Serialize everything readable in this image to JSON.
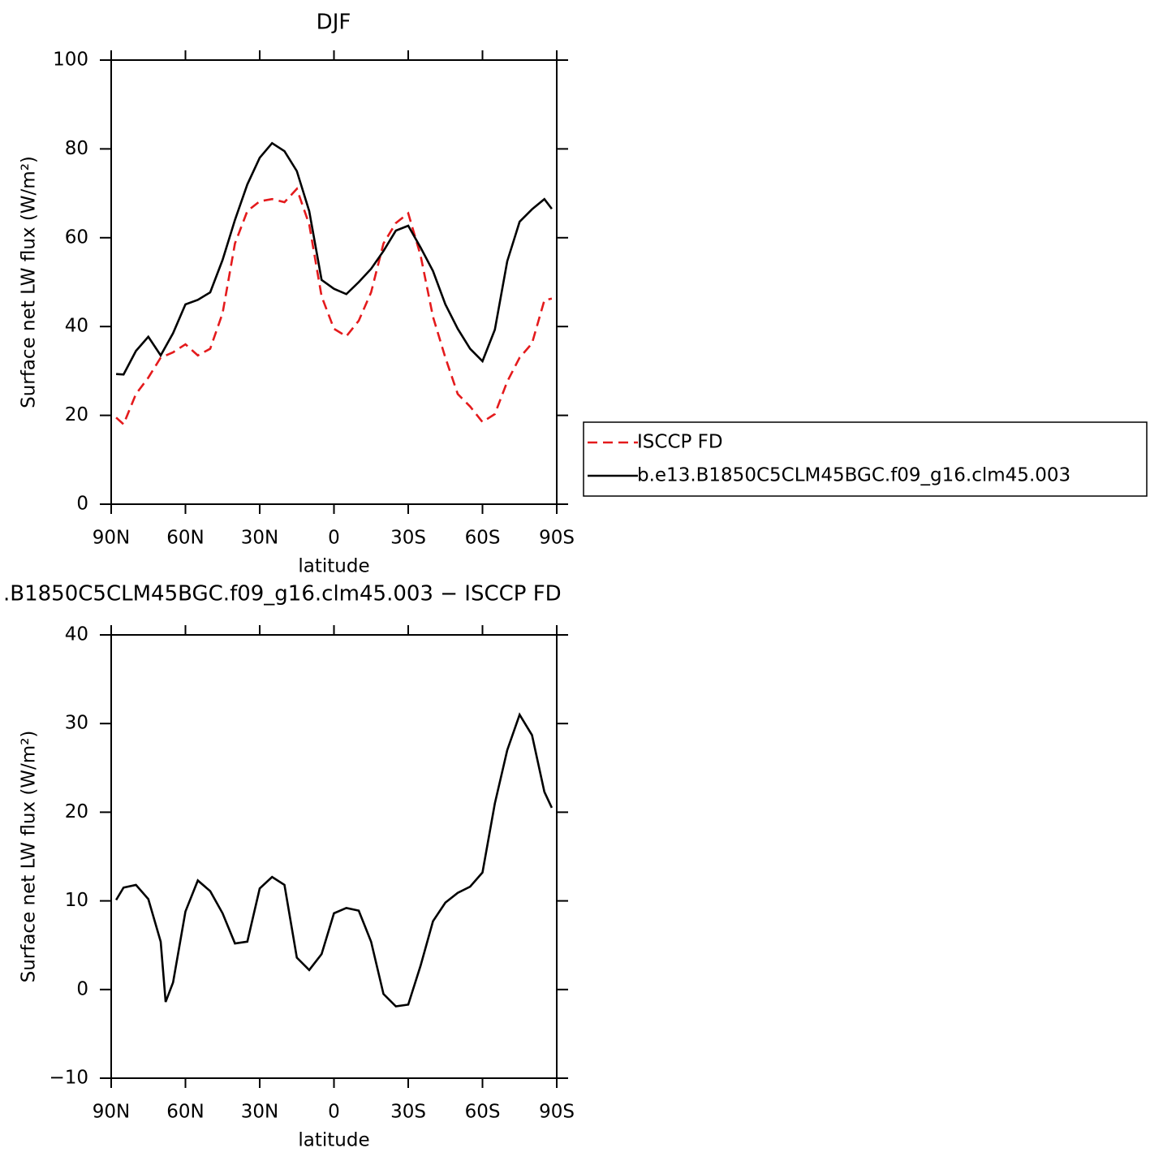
{
  "chart_data": [
    {
      "type": "line",
      "title": "DJF",
      "xlabel": "latitude",
      "ylabel": "Surface net LW flux (W/m²)",
      "x": [
        88,
        85,
        80,
        75,
        70,
        65,
        60,
        55,
        50,
        45,
        40,
        35,
        30,
        25,
        20,
        15,
        10,
        5,
        0,
        -5,
        -10,
        -15,
        -20,
        -25,
        -30,
        -35,
        -40,
        -45,
        -50,
        -55,
        -60,
        -65,
        -70,
        -75,
        -80,
        -85,
        -88
      ],
      "series": [
        {
          "name": "ISCCP FD",
          "color": "#e41a1c",
          "line_style": "dashed",
          "values": [
            19.5,
            18,
            24.8,
            28.5,
            33,
            34.2,
            36,
            33.5,
            35,
            43,
            58.7,
            66,
            68.2,
            68.7,
            68,
            71,
            63,
            46.8,
            39.5,
            37.8,
            41.3,
            47.7,
            58.7,
            63.3,
            65.5,
            56,
            42.2,
            33,
            24.8,
            22,
            18.5,
            20.3,
            27.6,
            33,
            36.2,
            45.9,
            46.3
          ]
        },
        {
          "name": "b.e13.B1850C5CLM45BGC.f09_g16.clm45.003",
          "color": "#000000",
          "line_style": "solid",
          "values": [
            29.3,
            29.2,
            34.5,
            37.7,
            33.5,
            38.5,
            45,
            46,
            47.7,
            55,
            64,
            72,
            78,
            81.3,
            79.5,
            75,
            66,
            50.5,
            48.5,
            47.3,
            50,
            53,
            57,
            61.6,
            62.7,
            57.8,
            52.5,
            45,
            39.5,
            35,
            32.2,
            39.3,
            54.7,
            63.6,
            66.4,
            68.7,
            66.5
          ]
        }
      ],
      "xlim": [
        90,
        -90
      ],
      "xticks": [
        {
          "value": 90,
          "label": "90N"
        },
        {
          "value": 60,
          "label": "60N"
        },
        {
          "value": 30,
          "label": "30N"
        },
        0,
        {
          "value": -30,
          "label": "30S"
        },
        {
          "value": -60,
          "label": "60S"
        },
        {
          "value": -90,
          "label": "90S"
        }
      ],
      "ylim": [
        0,
        100
      ],
      "yticks": [
        0,
        20,
        40,
        60,
        80,
        100
      ],
      "legend": "right"
    },
    {
      "type": "line",
      "title": ".B1850C5CLM45BGC.f09_g16.clm45.003 − ISCCP FD",
      "xlabel": "latitude",
      "ylabel": "Surface net LW flux (W/m²)",
      "x": [
        88,
        85,
        80,
        75,
        70,
        68,
        65,
        60,
        55,
        50,
        45,
        40,
        35,
        30,
        25,
        20,
        15,
        10,
        5,
        0,
        -5,
        -10,
        -15,
        -20,
        -25,
        -30,
        -35,
        -40,
        -45,
        -50,
        -55,
        -60,
        -65,
        -70,
        -75,
        -80,
        -85,
        -88
      ],
      "values": [
        10.1,
        11.5,
        11.8,
        10.2,
        5.4,
        -1.4,
        0.8,
        8.8,
        12.3,
        11.1,
        8.6,
        5.2,
        5.4,
        11.4,
        12.7,
        11.8,
        3.6,
        2.2,
        4,
        8.6,
        9.2,
        8.9,
        5.4,
        -0.5,
        -1.9,
        -1.7,
        2.7,
        7.7,
        9.8,
        10.9,
        11.6,
        13.2,
        21,
        27,
        31,
        28.7,
        22.3,
        20.5
      ],
      "color": "#000000",
      "xlim": [
        90,
        -90
      ],
      "xticks": [
        {
          "value": 90,
          "label": "90N"
        },
        {
          "value": 60,
          "label": "60N"
        },
        {
          "value": 30,
          "label": "30N"
        },
        0,
        {
          "value": -30,
          "label": "30S"
        },
        {
          "value": -60,
          "label": "60S"
        },
        {
          "value": -90,
          "label": "90S"
        }
      ],
      "ylim": [
        -10,
        40
      ],
      "yticks": [
        {
          "value": -10,
          "label": "−10"
        },
        0,
        10,
        20,
        30,
        40
      ]
    }
  ]
}
